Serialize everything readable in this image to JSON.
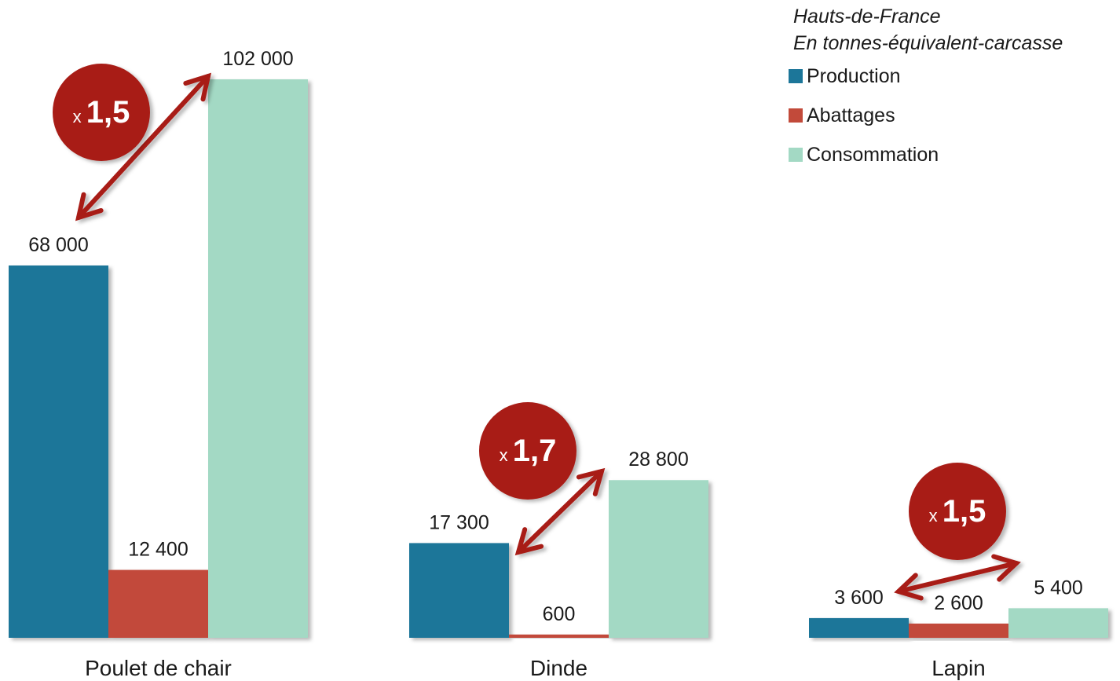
{
  "chart_data": {
    "type": "bar",
    "subtitle_lines": [
      "Hauts-de-France",
      "En tonnes-équivalent-carcasse"
    ],
    "categories": [
      "Poulet de chair",
      "Dinde",
      "Lapin"
    ],
    "series": [
      {
        "name": "Production",
        "color": "#1c7699",
        "values": [
          68000,
          17300,
          3600
        ],
        "labels": [
          "68 000",
          "17 300",
          "3 600"
        ]
      },
      {
        "name": "Abattages",
        "color": "#c24a3a",
        "values": [
          12400,
          600,
          2600
        ],
        "labels": [
          "12 400",
          "600",
          "2 600"
        ]
      },
      {
        "name": "Consommation",
        "color": "#a3d9c4",
        "values": [
          102000,
          28800,
          5400
        ],
        "labels": [
          "102 000",
          "28 800",
          "5 400"
        ]
      }
    ],
    "ratios": [
      {
        "category": "Poulet de chair",
        "prefix": "x",
        "value": "1,5"
      },
      {
        "category": "Dinde",
        "prefix": "x",
        "value": "1,7"
      },
      {
        "category": "Lapin",
        "prefix": "x",
        "value": "1,5"
      }
    ],
    "ratio_color": "#a81c17",
    "legend_position": "top-right",
    "grid": false,
    "ylim": [
      0,
      102000
    ]
  }
}
